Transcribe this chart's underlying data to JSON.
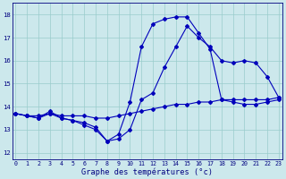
{
  "xlabel": "Graphe des températures (°c)",
  "bg_color": "#cce8ec",
  "grid_color": "#99cccc",
  "line_color": "#0000bb",
  "x_ticks": [
    0,
    1,
    2,
    3,
    4,
    5,
    6,
    7,
    8,
    9,
    10,
    11,
    12,
    13,
    14,
    15,
    16,
    17,
    18,
    19,
    20,
    21,
    22,
    23
  ],
  "y_ticks": [
    12,
    13,
    14,
    15,
    16,
    17,
    18
  ],
  "xlim": [
    -0.3,
    23.3
  ],
  "ylim": [
    11.7,
    18.5
  ],
  "series": [
    {
      "x": [
        0,
        1,
        2,
        3,
        4,
        5,
        6,
        7,
        8,
        9,
        10,
        11,
        12,
        13,
        14,
        15,
        16,
        17,
        18,
        19,
        20,
        21,
        22,
        23
      ],
      "y": [
        13.7,
        13.6,
        13.6,
        13.7,
        13.6,
        13.6,
        13.6,
        13.5,
        13.5,
        13.6,
        13.7,
        13.8,
        13.9,
        14.0,
        14.1,
        14.1,
        14.2,
        14.2,
        14.3,
        14.3,
        14.3,
        14.3,
        14.3,
        14.4
      ]
    },
    {
      "x": [
        0,
        1,
        2,
        3,
        4,
        5,
        6,
        7,
        8,
        9,
        10,
        11,
        12,
        13,
        14,
        15,
        16,
        17,
        18,
        19,
        20,
        21,
        22,
        23
      ],
      "y": [
        13.7,
        13.6,
        13.5,
        13.7,
        13.5,
        13.4,
        13.2,
        13.0,
        12.5,
        12.8,
        14.2,
        16.6,
        17.6,
        17.8,
        17.9,
        17.9,
        17.2,
        16.5,
        14.3,
        14.2,
        14.1,
        14.1,
        14.2,
        14.3
      ]
    },
    {
      "x": [
        0,
        1,
        2,
        3,
        4,
        5,
        6,
        7,
        8,
        9,
        10,
        11,
        12,
        13,
        14,
        15,
        16,
        17,
        18,
        19,
        20,
        21,
        22,
        23
      ],
      "y": [
        13.7,
        13.6,
        13.5,
        13.8,
        13.5,
        13.4,
        13.3,
        13.1,
        12.5,
        12.6,
        13.0,
        14.3,
        14.6,
        15.7,
        16.6,
        17.5,
        17.0,
        16.6,
        16.0,
        15.9,
        16.0,
        15.9,
        15.3,
        14.4
      ]
    }
  ]
}
